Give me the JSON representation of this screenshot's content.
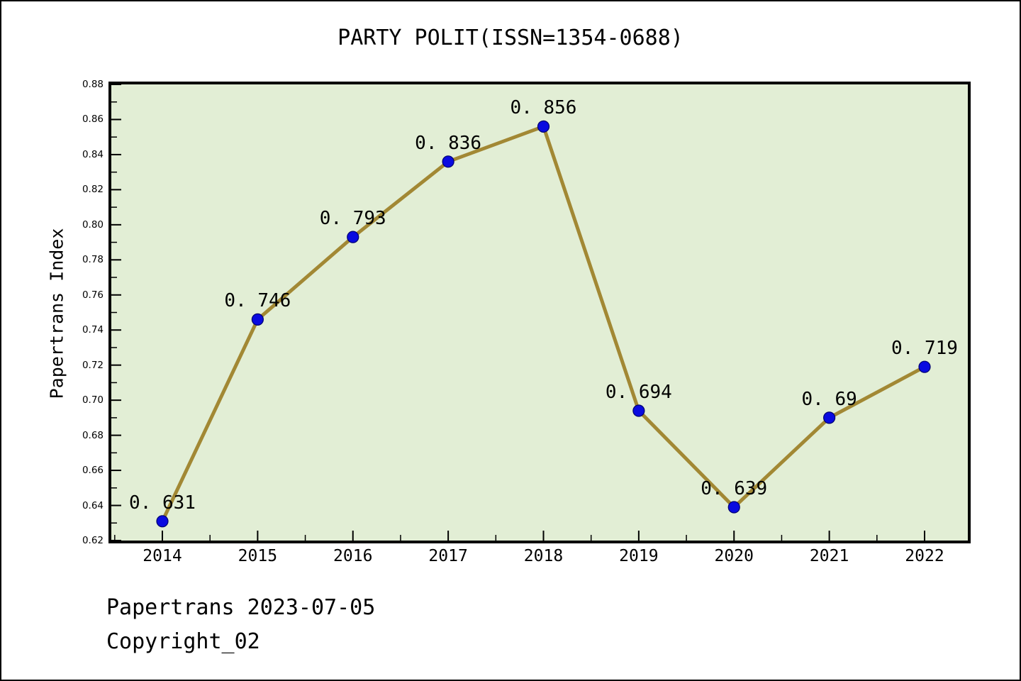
{
  "chart_data": {
    "type": "line",
    "title": "PARTY POLIT(ISSN=1354-0688)",
    "xlabel": "",
    "ylabel": "Papertrans Index",
    "x": [
      2014,
      2015,
      2016,
      2017,
      2018,
      2019,
      2020,
      2021,
      2022
    ],
    "series": [
      {
        "name": "Papertrans Index",
        "values": [
          0.631,
          0.746,
          0.793,
          0.836,
          0.856,
          0.694,
          0.639,
          0.69,
          0.719
        ]
      }
    ],
    "point_labels": [
      "0. 631",
      "0. 746",
      "0. 793",
      "0. 836",
      "0. 856",
      "0. 694",
      "0. 639",
      "0. 69",
      "0. 719"
    ],
    "ylim": [
      0.62,
      0.88
    ],
    "y_major_step": 0.02,
    "y_minor_step": 0.01,
    "x_minor_step": 0.5,
    "y_tick_format_decimals": 2,
    "grid": false,
    "legend": false,
    "colors": {
      "line": "#a28834",
      "marker": "#0a0ae0",
      "marker_edge": "#000070",
      "plot_bg": "#e2eed5",
      "axis": "#000000",
      "text": "#000000"
    }
  },
  "footer": {
    "line1": "Papertrans 2023-07-05",
    "line2": "Copyright_02"
  }
}
